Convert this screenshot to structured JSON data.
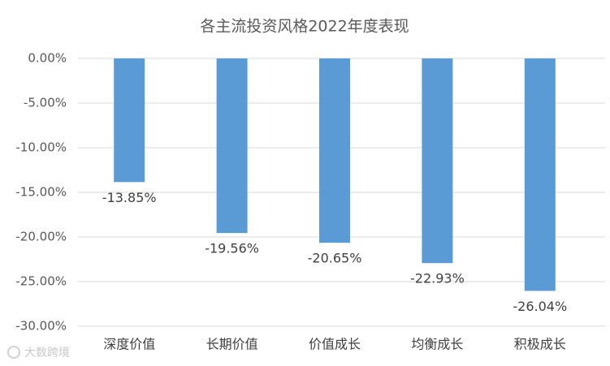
{
  "chart_data": {
    "type": "bar",
    "title": "各主流投资风格2022年度表现",
    "categories": [
      "深度价值",
      "长期价值",
      "价值成长",
      "均衡成长",
      "积极成长"
    ],
    "values": [
      -13.85,
      -19.56,
      -20.65,
      -22.93,
      -26.04
    ],
    "value_labels": [
      "-13.85%",
      "-19.56%",
      "-20.65%",
      "-22.93%",
      "-26.04%"
    ],
    "color": "#5b9bd5",
    "ylim": [
      -30,
      0
    ],
    "yticks": [
      {
        "value": 0,
        "label": "0.00%"
      },
      {
        "value": -5,
        "label": "-5.00%"
      },
      {
        "value": -10,
        "label": "-10.00%"
      },
      {
        "value": -15,
        "label": "-15.00%"
      },
      {
        "value": -20,
        "label": "-20.00%"
      },
      {
        "value": -25,
        "label": "-25.00%"
      },
      {
        "value": -30,
        "label": "-30.00%"
      }
    ],
    "grid": true
  },
  "watermark": "大数跨境"
}
